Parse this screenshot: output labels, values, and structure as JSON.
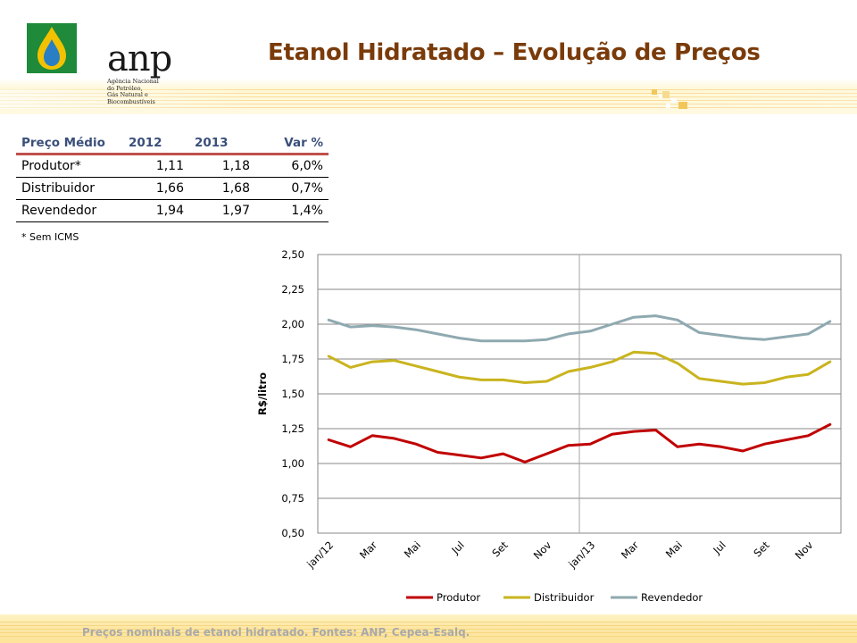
{
  "header": {
    "title": "Etanol  Hidratado – Evolução de Preços",
    "logo_text": "anp",
    "logo_sub": [
      "Agência Nacional",
      "do Petróleo,",
      "Gás Natural e Biocombustíveis"
    ]
  },
  "table": {
    "headers": [
      "Preço Médio",
      "2012",
      "2013",
      "Var %"
    ],
    "rows": [
      [
        "Produtor*",
        "1,11",
        "1,18",
        "6,0%"
      ],
      [
        "Distribuidor",
        "1,66",
        "1,68",
        "0,7%"
      ],
      [
        "Revendedor",
        "1,94",
        "1,97",
        "1,4%"
      ]
    ],
    "note": "* Sem ICMS"
  },
  "footer": "Preços nominais de etanol hidratado.  Fontes:  ANP, Cepea-Esalq.",
  "colors": {
    "produtor": "#c00000",
    "distribuidor": "#c9b41e",
    "revendedor": "#8fa9b0",
    "title": "#7a3b0a",
    "header_text": "#3a4f7a",
    "header_rule": "#c0504d"
  },
  "chart_data": {
    "type": "line",
    "ylabel": "R$/litro",
    "ylim": [
      0.5,
      2.5
    ],
    "yticks": [
      "0,50",
      "0,75",
      "1,00",
      "1,25",
      "1,50",
      "1,75",
      "2,00",
      "2,25",
      "2,50"
    ],
    "x_tick_labels": [
      "jan/12",
      "Mar",
      "Mai",
      "Jul",
      "Set",
      "Nov",
      "jan/13",
      "Mar",
      "Mai",
      "Jul",
      "Set",
      "Nov"
    ],
    "grid": true,
    "legend_position": "bottom",
    "series": [
      {
        "name": "Produtor",
        "color": "#c00000",
        "values": [
          1.17,
          1.12,
          1.2,
          1.18,
          1.14,
          1.08,
          1.06,
          1.04,
          1.07,
          1.01,
          1.07,
          1.13,
          1.14,
          1.21,
          1.23,
          1.24,
          1.12,
          1.14,
          1.12,
          1.09,
          1.14,
          1.17,
          1.2,
          1.28
        ]
      },
      {
        "name": "Distribuidor",
        "color": "#c9b41e",
        "values": [
          1.77,
          1.69,
          1.73,
          1.74,
          1.7,
          1.66,
          1.62,
          1.6,
          1.6,
          1.58,
          1.59,
          1.66,
          1.69,
          1.73,
          1.8,
          1.79,
          1.72,
          1.61,
          1.59,
          1.57,
          1.58,
          1.62,
          1.64,
          1.73
        ]
      },
      {
        "name": "Revendedor",
        "color": "#8fa9b0",
        "values": [
          2.03,
          1.98,
          1.99,
          1.98,
          1.96,
          1.93,
          1.9,
          1.88,
          1.88,
          1.88,
          1.89,
          1.93,
          1.95,
          2.0,
          2.05,
          2.06,
          2.03,
          1.94,
          1.92,
          1.9,
          1.89,
          1.91,
          1.93,
          2.02
        ]
      }
    ]
  }
}
